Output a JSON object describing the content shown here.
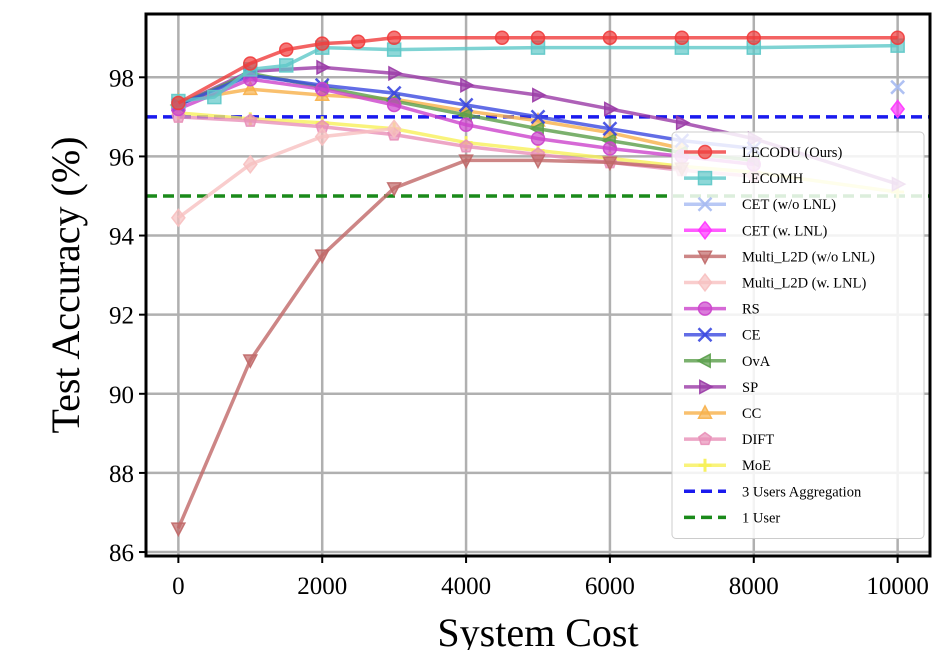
{
  "chart_data": {
    "type": "line",
    "xlabel": "System Cost",
    "ylabel": "Test Accuracy (%)",
    "xlim": [
      -450,
      10450
    ],
    "ylim": [
      85.9,
      99.6
    ],
    "xticks": [
      0,
      2000,
      4000,
      6000,
      8000,
      10000
    ],
    "yticks": [
      86,
      88,
      90,
      92,
      94,
      96,
      98
    ],
    "grid": true,
    "legend": "right",
    "series": [
      {
        "name": "LECODU (Ours)",
        "color": "#f03c3c",
        "marker": "circle",
        "line": "solid",
        "x": [
          0,
          1000,
          1500,
          2000,
          2500,
          3000,
          4500,
          5000,
          6000,
          7000,
          8000,
          10000
        ],
        "y": [
          97.35,
          98.35,
          98.7,
          98.85,
          98.9,
          99.0,
          99.0,
          99.0,
          99.0,
          99.0,
          99.0,
          99.0
        ]
      },
      {
        "name": "LECOMH",
        "color": "#5ec8c8",
        "marker": "square",
        "line": "solid",
        "x": [
          0,
          500,
          1000,
          1500,
          2000,
          3000,
          5000,
          7000,
          8000,
          10000
        ],
        "y": [
          97.4,
          97.5,
          98.2,
          98.3,
          98.75,
          98.7,
          98.75,
          98.75,
          98.75,
          98.8
        ]
      },
      {
        "name": "CET (w/o LNL)",
        "color": "#a6baf2",
        "marker": "x",
        "line": "none",
        "x": [
          10000
        ],
        "y": [
          97.75
        ]
      },
      {
        "name": "CET (w. LNL)",
        "color": "#ff33ff",
        "marker": "diamond",
        "line": "none",
        "x": [
          10000
        ],
        "y": [
          97.2
        ]
      },
      {
        "name": "Multi_L2D (w/o LNL)",
        "color": "#c06868",
        "marker": "triangle-down",
        "line": "solid",
        "x": [
          0,
          1000,
          2000,
          3000,
          4000,
          5000,
          6000,
          7000
        ],
        "y": [
          86.6,
          90.85,
          93.5,
          95.2,
          95.9,
          95.9,
          95.85,
          95.7
        ]
      },
      {
        "name": "Multi_L2D (w. LNL)",
        "color": "#f7c0c0",
        "marker": "diamond",
        "line": "solid",
        "x": [
          0,
          1000,
          2000,
          3000
        ],
        "y": [
          94.45,
          95.8,
          96.5,
          96.7
        ]
      },
      {
        "name": "RS",
        "color": "#cc44cc",
        "marker": "circle",
        "line": "solid",
        "x": [
          0,
          1000,
          2000,
          3000,
          4000,
          5000,
          6000,
          7000,
          8000
        ],
        "y": [
          97.2,
          97.95,
          97.7,
          97.3,
          96.8,
          96.45,
          96.2,
          96.0,
          95.8
        ]
      },
      {
        "name": "CE",
        "color": "#3b48e0",
        "marker": "x",
        "line": "solid",
        "x": [
          0,
          1000,
          2000,
          3000,
          4000,
          5000,
          6000,
          7000,
          8000
        ],
        "y": [
          97.3,
          98.05,
          97.8,
          97.6,
          97.3,
          97.0,
          96.7,
          96.4,
          96.2
        ]
      },
      {
        "name": "OvA",
        "color": "#5a9e4a",
        "marker": "triangle-left",
        "line": "solid",
        "x": [
          0,
          1000,
          2000,
          3000,
          4000,
          5000,
          6000,
          7000,
          8000
        ],
        "y": [
          97.3,
          98.1,
          97.75,
          97.4,
          97.05,
          96.7,
          96.4,
          96.1,
          95.9
        ]
      },
      {
        "name": "SP",
        "color": "#9a3aa6",
        "marker": "triangle-right",
        "line": "solid",
        "x": [
          0,
          1000,
          2000,
          3000,
          4000,
          5000,
          6000,
          7000,
          8000,
          10000
        ],
        "y": [
          97.3,
          98.15,
          98.25,
          98.1,
          97.8,
          97.55,
          97.2,
          96.85,
          96.45,
          95.3
        ]
      },
      {
        "name": "CC",
        "color": "#f7b04a",
        "marker": "triangle-up",
        "line": "solid",
        "x": [
          0,
          1000,
          2000,
          3000,
          4000,
          5000,
          6000,
          7000
        ],
        "y": [
          97.4,
          97.7,
          97.55,
          97.45,
          97.15,
          96.9,
          96.6,
          96.2
        ]
      },
      {
        "name": "DIFT",
        "color": "#e890b8",
        "marker": "pentagon",
        "line": "solid",
        "x": [
          0,
          1000,
          2000,
          3000,
          4000,
          5000,
          6000,
          7000,
          8000
        ],
        "y": [
          97.0,
          96.9,
          96.75,
          96.55,
          96.25,
          96.05,
          95.85,
          95.65,
          95.5
        ]
      },
      {
        "name": "MoE",
        "color": "#f7f05a",
        "marker": "plus",
        "line": "solid",
        "x": [
          0,
          1000,
          2000,
          3000,
          4000,
          5000,
          6000,
          7000,
          8000,
          10000
        ],
        "y": [
          97.1,
          96.95,
          96.85,
          96.7,
          96.35,
          96.15,
          95.95,
          95.75,
          95.6,
          95.1
        ]
      },
      {
        "name": "3 Users Aggregation",
        "color": "#1a1aee",
        "marker": "none",
        "line": "dashed",
        "hline": 97.0
      },
      {
        "name": "1 User",
        "color": "#1a8a1a",
        "marker": "none",
        "line": "dashed",
        "hline": 95.0
      }
    ]
  }
}
